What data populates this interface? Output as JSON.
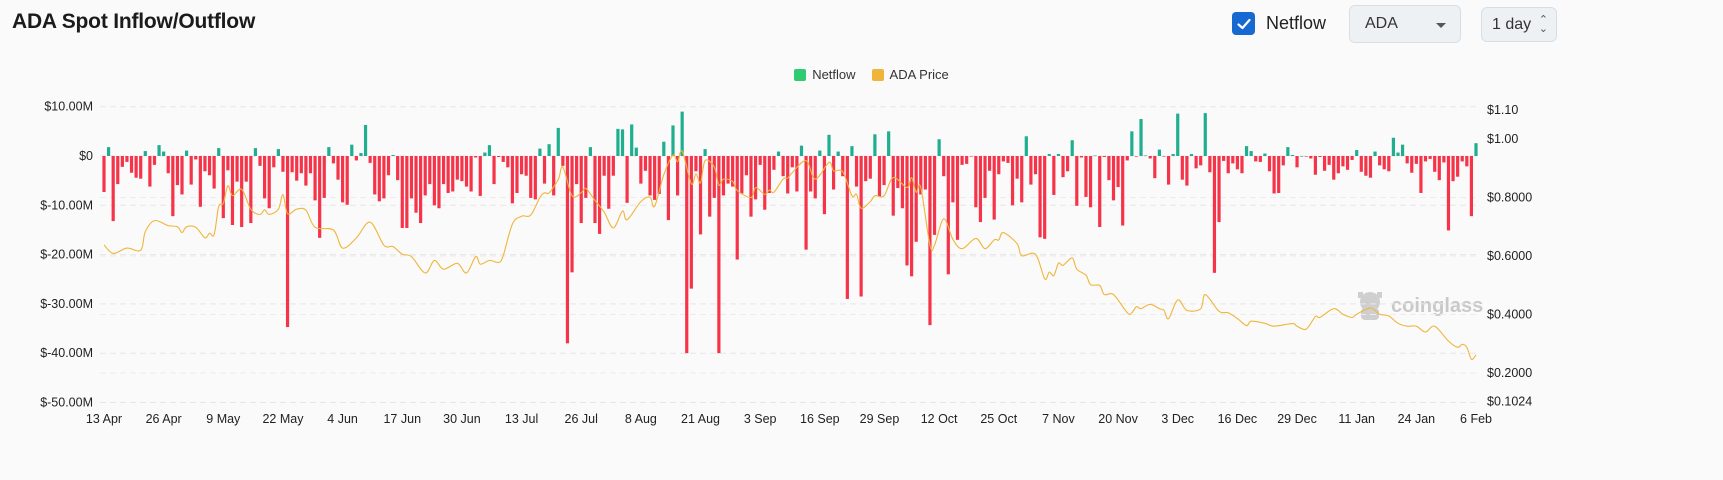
{
  "header": {
    "title": "ADA Spot Inflow/Outflow",
    "netflow_checkbox": {
      "label": "Netflow",
      "checked": true
    },
    "coin_select": {
      "value": "ADA"
    },
    "interval_select": {
      "value": "1 day"
    }
  },
  "watermark": "coinglass",
  "colors": {
    "inflow": "#1fae8e",
    "outflow": "#f5344a",
    "price": "#efb53a",
    "legend_netflow": "#2ecc71",
    "legend_price": "#efb53a",
    "checkbox": "#1769d2"
  },
  "chart_data": {
    "type": "bar+line",
    "legend_position": "top-center",
    "grid": true,
    "legend": [
      {
        "name": "Netflow"
      },
      {
        "name": "ADA Price"
      }
    ],
    "x_ticks": [
      "13 Apr",
      "26 Apr",
      "9 May",
      "22 May",
      "4 Jun",
      "17 Jun",
      "30 Jun",
      "13 Jul",
      "26 Jul",
      "8 Aug",
      "21 Aug",
      "3 Sep",
      "16 Sep",
      "29 Sep",
      "12 Oct",
      "25 Oct",
      "7 Nov",
      "20 Nov",
      "3 Dec",
      "16 Dec",
      "29 Dec",
      "11 Jan",
      "24 Jan",
      "6 Feb"
    ],
    "x_interval": "1 day",
    "y_left": {
      "ticks": [
        "$10.00M",
        "$0",
        "$-10.00M",
        "$-20.00M",
        "$-30.00M",
        "$-40.00M",
        "$-50.00M"
      ],
      "tick_values": [
        10,
        0,
        -10,
        -20,
        -30,
        -40,
        -50
      ],
      "unit": "USD millions",
      "range": [
        -50,
        10
      ]
    },
    "y_right": {
      "ticks": [
        "$1.10",
        "$1.00",
        "$0.8000",
        "$0.6000",
        "$0.4000",
        "$0.2000",
        "$0.1024"
      ],
      "tick_values": [
        1.1,
        1.0,
        0.8,
        0.6,
        0.4,
        0.2,
        0.1024
      ],
      "range": [
        0.1024,
        1.1
      ]
    },
    "netflow_musd": [
      -7.3,
      1.8,
      -13.2,
      -5.7,
      -2.2,
      -1.2,
      -3.4,
      -4.4,
      -4.6,
      1.0,
      -6.2,
      -1.8,
      2.2,
      0.9,
      -3.5,
      -12.2,
      -5.9,
      -7.8,
      1.1,
      -5.8,
      -0.7,
      -10.3,
      -3.1,
      -3.9,
      -6.6,
      1.6,
      -12.6,
      -2.9,
      -14.0,
      -5.2,
      -14.4,
      -5.2,
      -13.6,
      1.6,
      -2.0,
      -8.6,
      -10.6,
      -2.3,
      1.4,
      -3.2,
      -34.7,
      -3.3,
      -5.0,
      -3.5,
      -6.0,
      -3.5,
      -9.0,
      -16.6,
      -8.5,
      1.8,
      -1.5,
      -4.8,
      -9.4,
      -9.9,
      2.3,
      -0.9,
      0.6,
      6.3,
      -1.4,
      -7.8,
      -9.2,
      -8.6,
      -3.9,
      0.2,
      -4.9,
      -14.6,
      -14.6,
      -8.6,
      -11.5,
      -13.6,
      -8.0,
      -5.7,
      -10.0,
      -10.6,
      -5.7,
      -7.5,
      -7.2,
      -4.8,
      -5.1,
      -6.2,
      -7.2,
      -0.3,
      -8.1,
      0.7,
      2.2,
      -5.7,
      -0.2,
      -1.2,
      -2.3,
      -9.6,
      -7.5,
      -3.7,
      -4.0,
      -8.5,
      -8.8,
      1.5,
      -5.6,
      2.4,
      -8.0,
      5.7,
      -2.0,
      -38.0,
      -23.6,
      -5.7,
      -13.6,
      -8.5,
      1.8,
      -13.6,
      -15.8,
      -4.0,
      -10.7,
      -4.0,
      5.5,
      5.4,
      -9.5,
      6.4,
      1.7,
      -5.6,
      -3.0,
      -8.0,
      -8.9,
      -7.7,
      2.9,
      -13.0,
      6.2,
      -8.0,
      9.0,
      -40.0,
      -26.9,
      -3.1,
      -15.9,
      1.4,
      -12.3,
      -8.5,
      -40.0,
      -8.0,
      -5.6,
      -6.2,
      -21.0,
      -7.6,
      -3.9,
      -12.3,
      -8.8,
      -1.8,
      -10.9,
      -7.5,
      -2.8,
      0.9,
      -4.1,
      -7.6,
      -2.3,
      -7.2,
      2.1,
      -19.0,
      -7.2,
      -8.6,
      1.1,
      -11.8,
      4.3,
      -6.8,
      0.9,
      -4.1,
      -29.0,
      2.0,
      -6.2,
      -28.5,
      -5.1,
      -4.6,
      4.4,
      -8.2,
      -5.9,
      5.0,
      -12.1,
      -6.5,
      -10.6,
      -22.2,
      -24.4,
      -17.4,
      -7.8,
      -6.8,
      -34.3,
      -16.0,
      3.4,
      -4.1,
      -24.0,
      -9.4,
      -17.0,
      -1.8,
      -1.6,
      -0.1,
      -10.4,
      -13.4,
      -8.5,
      -3.0,
      -12.9,
      -3.7,
      -1.1,
      -1.4,
      -10.0,
      -4.6,
      -9.4,
      4.0,
      -5.8,
      -3.7,
      -16.5,
      -16.8,
      0.4,
      -7.9,
      0.4,
      -4.3,
      -3.1,
      3.2,
      -10.1,
      -0.3,
      -8.3,
      -10.4,
      0.1,
      -14.4,
      -0.2,
      -4.9,
      -9.0,
      -6.3,
      -14.1,
      -0.9,
      5.0,
      -0.1,
      7.5,
      0.1,
      -0.5,
      -4.5,
      1.3,
      -0.1,
      -5.8,
      0.4,
      8.6,
      -4.8,
      -6.0,
      0.4,
      -2.5,
      -1.9,
      8.7,
      -3.3,
      -23.7,
      -13.4,
      -1.0,
      -3.5,
      -1.5,
      -2.7,
      -3.5,
      2.0,
      1.0,
      -1.1,
      -1.2,
      0.5,
      -3.1,
      -7.6,
      -7.5,
      -1.9,
      1.8,
      0.2,
      -2.3,
      0.0,
      -0.1,
      -0.5,
      -3.8,
      -0.2,
      -3.0,
      -1.8,
      -4.8,
      -3.5,
      -2.1,
      -2.8,
      -0.8,
      1.2,
      -3.2,
      -4.0,
      -4.4,
      0.9,
      -1.9,
      -2.7,
      -3.1,
      3.7,
      0.7,
      2.3,
      -1.5,
      -3.4,
      -1.6,
      -7.5,
      -1.1,
      -0.6,
      -3.2,
      -4.9,
      -1.3,
      -15.1,
      -5.1,
      -4.2,
      -1.1,
      -2.1,
      -12.2,
      2.6
    ],
    "price_usd": [
      [
        "13 Apr",
        0.638
      ],
      [
        "15 Apr",
        0.609
      ],
      [
        "18 Apr",
        0.627
      ],
      [
        "21 Apr",
        0.62
      ],
      [
        "22 Apr",
        0.683
      ],
      [
        "24 Apr",
        0.721
      ],
      [
        "27 Apr",
        0.704
      ],
      [
        "29 Apr",
        0.7
      ],
      [
        "30 Apr",
        0.68
      ],
      [
        "1 May",
        0.7
      ],
      [
        "3 May",
        0.698
      ],
      [
        "5 May",
        0.662
      ],
      [
        "6 May",
        0.678
      ],
      [
        "7 May",
        0.673
      ],
      [
        "8 May",
        0.77
      ],
      [
        "9 May",
        0.78
      ],
      [
        "10 May",
        0.84
      ],
      [
        "11 May",
        0.806
      ],
      [
        "13 May",
        0.828
      ],
      [
        "15 May",
        0.76
      ],
      [
        "17 May",
        0.742
      ],
      [
        "18 May",
        0.758
      ],
      [
        "19 May",
        0.742
      ],
      [
        "21 May",
        0.76
      ],
      [
        "22 May",
        0.81
      ],
      [
        "23 May",
        0.745
      ],
      [
        "25 May",
        0.76
      ],
      [
        "27 May",
        0.757
      ],
      [
        "29 May",
        0.698
      ],
      [
        "2 Jun",
        0.689
      ],
      [
        "4 Jun",
        0.627
      ],
      [
        "7 Jun",
        0.662
      ],
      [
        "10 Jun",
        0.716
      ],
      [
        "13 Jun",
        0.637
      ],
      [
        "15 Jun",
        0.632
      ],
      [
        "17 Jun",
        0.606
      ],
      [
        "19 Jun",
        0.598
      ],
      [
        "22 Jun",
        0.542
      ],
      [
        "24 Jun",
        0.585
      ],
      [
        "26 Jun",
        0.555
      ],
      [
        "29 Jun",
        0.575
      ],
      [
        "1 Jul",
        0.542
      ],
      [
        "3 Jul",
        0.598
      ],
      [
        "4 Jul",
        0.572
      ],
      [
        "6 Jul",
        0.585
      ],
      [
        "8 Jul",
        0.578
      ],
      [
        "9 Jul",
        0.601
      ],
      [
        "11 Jul",
        0.709
      ],
      [
        "13 Jul",
        0.736
      ],
      [
        "15 Jul",
        0.74
      ],
      [
        "17 Jul",
        0.8
      ],
      [
        "18 Jul",
        0.816
      ],
      [
        "19 Jul",
        0.816
      ],
      [
        "21 Jul",
        0.862
      ],
      [
        "22 Jul",
        0.904
      ],
      [
        "24 Jul",
        0.806
      ],
      [
        "26 Jul",
        0.816
      ],
      [
        "27 Jul",
        0.831
      ],
      [
        "29 Jul",
        0.79
      ],
      [
        "31 Jul",
        0.75
      ],
      [
        "2 Aug",
        0.696
      ],
      [
        "4 Aug",
        0.754
      ],
      [
        "5 Aug",
        0.724
      ],
      [
        "8 Aug",
        0.786
      ],
      [
        "10 Aug",
        0.801
      ],
      [
        "11 Aug",
        0.77
      ],
      [
        "13 Aug",
        0.878
      ],
      [
        "15 Aug",
        0.945
      ],
      [
        "16 Aug",
        0.922
      ],
      [
        "17 Aug",
        0.958
      ],
      [
        "19 Aug",
        0.847
      ],
      [
        "20 Aug",
        0.881
      ],
      [
        "21 Aug",
        0.85
      ],
      [
        "22 Aug",
        0.926
      ],
      [
        "24 Aug",
        0.904
      ],
      [
        "25 Aug",
        0.842
      ],
      [
        "26 Aug",
        0.863
      ],
      [
        "28 Aug",
        0.855
      ],
      [
        "29 Aug",
        0.824
      ],
      [
        "1 Sep",
        0.8
      ],
      [
        "2 Sep",
        0.834
      ],
      [
        "4 Sep",
        0.811
      ],
      [
        "5 Sep",
        0.826
      ],
      [
        "6 Sep",
        0.818
      ],
      [
        "8 Sep",
        0.863
      ],
      [
        "9 Sep",
        0.866
      ],
      [
        "10 Sep",
        0.885
      ],
      [
        "13 Sep",
        0.926
      ],
      [
        "15 Sep",
        0.863
      ],
      [
        "18 Sep",
        0.92
      ],
      [
        "19 Sep",
        0.891
      ],
      [
        "21 Sep",
        0.888
      ],
      [
        "23 Sep",
        0.806
      ],
      [
        "24 Sep",
        0.811
      ],
      [
        "25 Sep",
        0.763
      ],
      [
        "27 Sep",
        0.786
      ],
      [
        "28 Sep",
        0.806
      ],
      [
        "30 Sep",
        0.806
      ],
      [
        "2 Oct",
        0.868
      ],
      [
        "5 Oct",
        0.834
      ],
      [
        "6 Oct",
        0.868
      ],
      [
        "7 Oct",
        0.818
      ],
      [
        "8 Oct",
        0.834
      ],
      [
        "10 Oct",
        0.637
      ],
      [
        "11 Oct",
        0.637
      ],
      [
        "13 Oct",
        0.727
      ],
      [
        "15 Oct",
        0.657
      ],
      [
        "17 Oct",
        0.625
      ],
      [
        "20 Oct",
        0.66
      ],
      [
        "22 Oct",
        0.625
      ],
      [
        "24 Oct",
        0.655
      ],
      [
        "25 Oct",
        0.655
      ],
      [
        "26 Oct",
        0.68
      ],
      [
        "29 Oct",
        0.642
      ],
      [
        "30 Oct",
        0.601
      ],
      [
        "2 Nov",
        0.606
      ],
      [
        "4 Nov",
        0.522
      ],
      [
        "5 Nov",
        0.545
      ],
      [
        "6 Nov",
        0.533
      ],
      [
        "7 Nov",
        0.575
      ],
      [
        "8 Nov",
        0.568
      ],
      [
        "10 Nov",
        0.593
      ],
      [
        "11 Nov",
        0.555
      ],
      [
        "13 Nov",
        0.534
      ],
      [
        "14 Nov",
        0.502
      ],
      [
        "16 Nov",
        0.499
      ],
      [
        "17 Nov",
        0.468
      ],
      [
        "19 Nov",
        0.468
      ],
      [
        "22 Nov",
        0.406
      ],
      [
        "23 Nov",
        0.406
      ],
      [
        "24 Nov",
        0.427
      ],
      [
        "25 Nov",
        0.42
      ],
      [
        "27 Nov",
        0.435
      ],
      [
        "29 Nov",
        0.42
      ],
      [
        "30 Nov",
        0.414
      ],
      [
        "1 Dec",
        0.386
      ],
      [
        "3 Dec",
        0.45
      ],
      [
        "5 Dec",
        0.414
      ],
      [
        "8 Dec",
        0.42
      ],
      [
        "9 Dec",
        0.468
      ],
      [
        "12 Dec",
        0.411
      ],
      [
        "14 Dec",
        0.406
      ],
      [
        "16 Dec",
        0.386
      ],
      [
        "18 Dec",
        0.362
      ],
      [
        "19 Dec",
        0.377
      ],
      [
        "22 Dec",
        0.37
      ],
      [
        "24 Dec",
        0.36
      ],
      [
        "28 Dec",
        0.369
      ],
      [
        "29 Dec",
        0.36
      ],
      [
        "31 Dec",
        0.35
      ],
      [
        "2 Jan",
        0.393
      ],
      [
        "3 Jan",
        0.39
      ],
      [
        "6 Jan",
        0.42
      ],
      [
        "8 Jan",
        0.401
      ],
      [
        "10 Jan",
        0.39
      ],
      [
        "11 Jan",
        0.401
      ],
      [
        "14 Jan",
        0.422
      ],
      [
        "16 Jan",
        0.401
      ],
      [
        "18 Jan",
        0.395
      ],
      [
        "20 Jan",
        0.37
      ],
      [
        "22 Jan",
        0.36
      ],
      [
        "24 Jan",
        0.36
      ],
      [
        "26 Jan",
        0.34
      ],
      [
        "28 Jan",
        0.36
      ],
      [
        "31 Jan",
        0.309
      ],
      [
        "2 Feb",
        0.288
      ],
      [
        "3 Feb",
        0.298
      ],
      [
        "4 Feb",
        0.288
      ],
      [
        "5 Feb",
        0.247
      ],
      [
        "6 Feb",
        0.262
      ]
    ]
  }
}
